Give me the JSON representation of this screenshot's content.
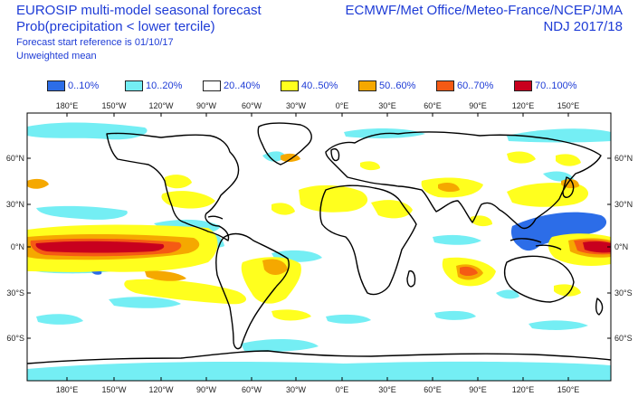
{
  "header": {
    "title": "EUROSIP multi-model seasonal forecast",
    "subtitle": "Prob(precipitation < lower tercile)",
    "reference": "Forecast start reference is 01/10/17",
    "mean_type": "Unweighted mean",
    "centres": "ECMWF/Met Office/Meteo-France/NCEP/JMA",
    "period": "NDJ 2017/18"
  },
  "legend": [
    {
      "label": "0..10%",
      "color": "#2c6de8"
    },
    {
      "label": "10..20%",
      "color": "#74eef4"
    },
    {
      "label": "20..40%",
      "color": "#ffffff"
    },
    {
      "label": "40..50%",
      "color": "#ffff1e"
    },
    {
      "label": "50..60%",
      "color": "#f5a800"
    },
    {
      "label": "60..70%",
      "color": "#f55a14"
    },
    {
      "label": "70..100%",
      "color": "#c8001e"
    }
  ],
  "axes": {
    "lon_labels": [
      "180°E",
      "150°W",
      "120°W",
      "90°W",
      "60°W",
      "30°W",
      "0°E",
      "30°E",
      "60°E",
      "90°E",
      "120°E",
      "150°E"
    ],
    "lat_labels": [
      "60°N",
      "30°N",
      "0°N",
      "30°S",
      "60°S"
    ]
  }
}
